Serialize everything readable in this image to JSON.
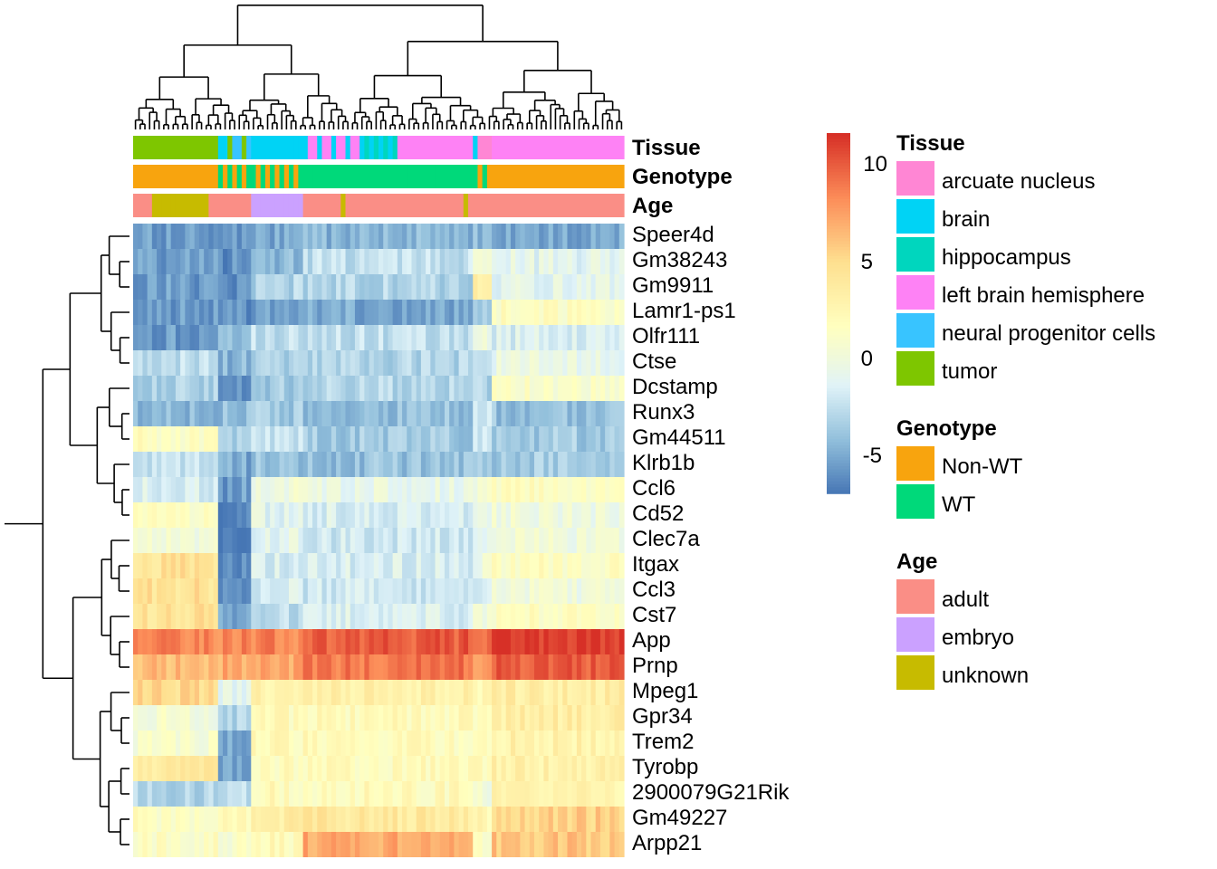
{
  "chart_data": {
    "type": "heatmap",
    "color_scale": {
      "min": -7,
      "max": 11.5,
      "ticks": [
        10,
        5,
        0,
        -5
      ],
      "colors": [
        "#4575b4",
        "#91bfdb",
        "#e0f3f8",
        "#ffffbf",
        "#fee090",
        "#fc8d59",
        "#d73027"
      ]
    },
    "rows": [
      "Speer4d",
      "Gm38243",
      "Gm9911",
      "Lamr1-ps1",
      "Olfr111",
      "Ctse",
      "Dcstamp",
      "Runx3",
      "Gm44511",
      "Klrb1b",
      "Ccl6",
      "Cd52",
      "Clec7a",
      "Itgax",
      "Ccl3",
      "Cst7",
      "App",
      "Prnp",
      "Mpeg1",
      "Gpr34",
      "Trem2",
      "Tyrobp",
      "2900079G21Rik",
      "Gm49227",
      "Arpp21"
    ],
    "column_groups": [
      {
        "n": 18,
        "tissue": "tumor",
        "genotype": "Non-WT",
        "age": "mixed",
        "values": [
          -5.5,
          -5.5,
          -5.5,
          -5.5,
          -5.5,
          -2.5,
          -3,
          -4.5,
          1.5,
          -2.5,
          -1.5,
          1.5,
          0.5,
          4.5,
          4.5,
          4.5,
          8.5,
          6.5,
          5,
          0.5,
          0.5,
          4,
          -3,
          1.5,
          1.5
        ]
      },
      {
        "n": 7,
        "tissue": "neural progenitor cells",
        "genotype": "mixed",
        "age": "adult",
        "values": [
          -5.5,
          -6,
          -6,
          -6,
          -4.5,
          -4.5,
          -5.5,
          -4,
          -3.5,
          -5,
          -5.5,
          -6,
          -6,
          -6,
          -6,
          -5.5,
          8.5,
          7,
          -1,
          -3,
          -5,
          -5,
          -2.5,
          2,
          1
        ]
      },
      {
        "n": 11,
        "tissue": "brain",
        "genotype": "mixed",
        "age": "embryo",
        "values": [
          -5,
          -4.5,
          -3,
          -5.5,
          -2.5,
          -3.5,
          -3.5,
          -3.5,
          -2.5,
          -4,
          0,
          -1,
          -1,
          -1.5,
          -1.5,
          -2.5,
          8.5,
          7,
          3,
          2,
          2,
          2,
          2,
          3.5,
          2
        ]
      },
      {
        "n": 36,
        "tissue": "left brain hemisphere / hippocampus",
        "genotype": "WT",
        "age": "adult",
        "values": [
          -4.5,
          -2.5,
          -3,
          -5,
          -2.5,
          -3,
          -3,
          -4,
          -3.5,
          -4,
          -0.5,
          -1.5,
          -2,
          -1.5,
          -2,
          -1.5,
          10,
          9,
          3,
          2,
          2,
          2,
          2,
          4,
          7
        ]
      },
      {
        "n": 4,
        "tissue": "arcuate nucleus",
        "genotype": "mixed",
        "age": "adult",
        "values": [
          -4.5,
          0,
          3.5,
          -3,
          -0.5,
          -2,
          -3,
          -2.5,
          -2,
          -4,
          0,
          0,
          -1.5,
          0,
          -1.5,
          0,
          9,
          8,
          2,
          1.5,
          2,
          2,
          0,
          2.5,
          1.5
        ]
      },
      {
        "n": 28,
        "tissue": "left brain hemisphere",
        "genotype": "Non-WT",
        "age": "adult",
        "values": [
          -5,
          -1,
          -1,
          1.5,
          -1.5,
          -0.5,
          1,
          -4,
          -3.5,
          -3.5,
          1.5,
          0,
          0,
          1.5,
          0,
          1.5,
          11,
          10,
          3.5,
          3.5,
          3,
          3,
          2.5,
          5.5,
          6
        ]
      }
    ]
  },
  "annotation_tracks": [
    "Tissue",
    "Genotype",
    "Age"
  ],
  "legends": {
    "colorbar_ticks": [
      "10",
      "5",
      "0",
      "-5"
    ],
    "tissue": {
      "title": "Tissue",
      "items": [
        {
          "label": "arcuate nucleus",
          "color": "#ff86d4"
        },
        {
          "label": "brain",
          "color": "#00d3f5"
        },
        {
          "label": "hippocampus",
          "color": "#00d6be"
        },
        {
          "label": "left brain hemisphere",
          "color": "#fe82f5"
        },
        {
          "label": "neural progenitor cells",
          "color": "#38c4ff"
        },
        {
          "label": "tumor",
          "color": "#7ec600"
        }
      ]
    },
    "genotype": {
      "title": "Genotype",
      "items": [
        {
          "label": "Non-WT",
          "color": "#f8a40e"
        },
        {
          "label": "WT",
          "color": "#00d97a"
        }
      ]
    },
    "age": {
      "title": "Age",
      "items": [
        {
          "label": "adult",
          "color": "#fa8e86"
        },
        {
          "label": "embryo",
          "color": "#cba1ff"
        },
        {
          "label": "unknown",
          "color": "#c7bb00"
        }
      ]
    }
  }
}
